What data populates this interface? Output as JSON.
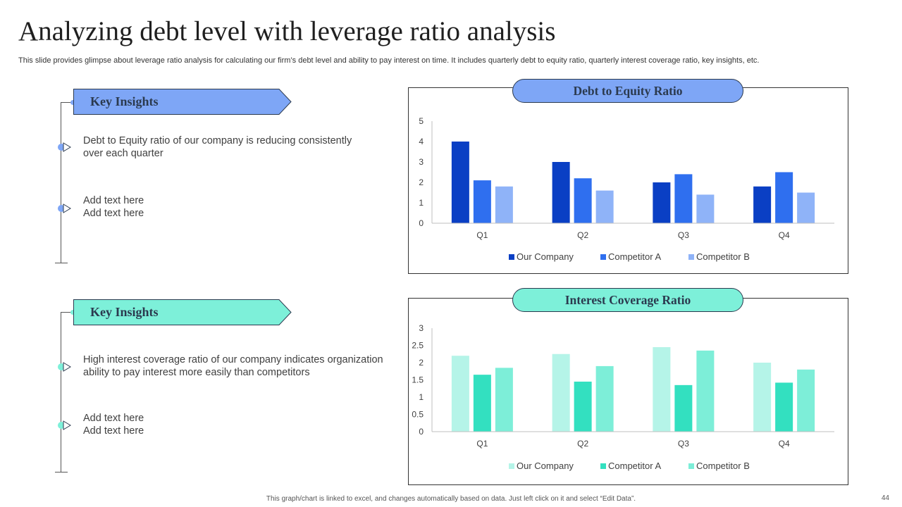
{
  "title": "Analyzing debt level with leverage ratio analysis",
  "subtitle": "This slide provides glimpse about leverage ratio analysis for calculating our firm’s debt level and ability to pay interest on time. It includes quarterly debt to equity ratio, quarterly interest coverage ratio, key insights, etc.",
  "colors": {
    "blue_banner": "#7ea6f6",
    "teal_banner": "#7df0d9",
    "blue_dot": "#7ea6f6",
    "teal_dot": "#7df0d9"
  },
  "sections": [
    {
      "banner": "Key Insights",
      "items": [
        "Debt to Equity ratio of our company is reducing consistently over each quarter",
        "Add text here\nAdd text here"
      ]
    },
    {
      "banner": "Key Insights",
      "items": [
        "High interest coverage ratio of our company indicates organization ability to pay interest more easily than competitors",
        "Add text here\nAdd text here"
      ]
    }
  ],
  "footer": "This graph/chart is linked to excel, and changes automatically based on data. Just left click on it and select “Edit Data”.",
  "page_number": "44",
  "chart_data": [
    {
      "type": "bar",
      "title": "Debt to Equity Ratio",
      "categories": [
        "Q1",
        "Q2",
        "Q3",
        "Q4"
      ],
      "series": [
        {
          "name": "Our Company",
          "values": [
            4.0,
            3.0,
            2.0,
            1.8
          ],
          "color": "#0a3fc4"
        },
        {
          "name": "Competitor A",
          "values": [
            2.1,
            2.2,
            2.4,
            2.5
          ],
          "color": "#2f6fef"
        },
        {
          "name": "Competitor B",
          "values": [
            1.8,
            1.6,
            1.4,
            1.5
          ],
          "color": "#8fb3f8"
        }
      ],
      "ylim": [
        0,
        5
      ],
      "yticks": [
        "0",
        "1",
        "2",
        "3",
        "4",
        "5"
      ],
      "ytick_values": [
        0,
        1,
        2,
        3,
        4,
        5
      ],
      "legend": "bottom"
    },
    {
      "type": "bar",
      "title": "Interest Coverage Ratio",
      "categories": [
        "Q1",
        "Q2",
        "Q3",
        "Q4"
      ],
      "series": [
        {
          "name": "Our Company",
          "values": [
            2.2,
            2.25,
            2.45,
            2.0
          ],
          "color": "#b5f4e8"
        },
        {
          "name": "Competitor A",
          "values": [
            1.65,
            1.45,
            1.35,
            1.42
          ],
          "color": "#33e0c0"
        },
        {
          "name": "Competitor B",
          "values": [
            1.85,
            1.9,
            2.35,
            1.8
          ],
          "color": "#7deed8"
        }
      ],
      "ylim": [
        0,
        3
      ],
      "yticks": [
        "0",
        "0.5",
        "1",
        "1.5",
        "2",
        "2.5",
        "3"
      ],
      "ytick_values": [
        0,
        0.5,
        1,
        1.5,
        2,
        2.5,
        3
      ],
      "legend": "bottom"
    }
  ]
}
